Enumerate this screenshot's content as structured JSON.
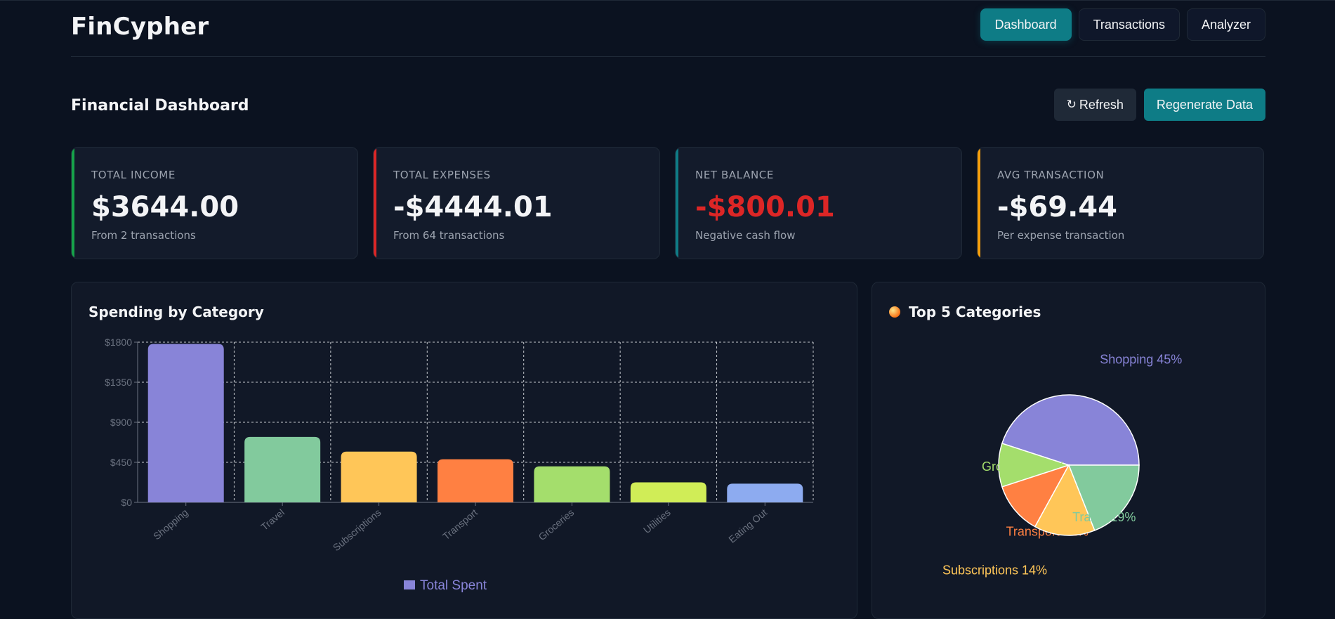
{
  "app": {
    "name": "FinCypher"
  },
  "nav": [
    {
      "label": "Dashboard",
      "active": true
    },
    {
      "label": "Transactions",
      "active": false
    },
    {
      "label": "Analyzer",
      "active": false
    }
  ],
  "toolbar": {
    "title": "Financial Dashboard",
    "refresh_icon": "↻",
    "refresh_label": "Refresh",
    "regenerate_label": "Regenerate Data"
  },
  "stats": [
    {
      "label": "TOTAL INCOME",
      "value": "$3644.00",
      "sub": "From 2 transactions",
      "accent": "#16a34a",
      "value_color": "#f3f4f6"
    },
    {
      "label": "TOTAL EXPENSES",
      "value": "-$4444.01",
      "sub": "From 64 transactions",
      "accent": "#dc2626",
      "value_color": "#f3f4f6"
    },
    {
      "label": "NET BALANCE",
      "value": "-$800.01",
      "sub": "Negative cash flow",
      "accent": "#0e7c86",
      "value_color": "#dc2626"
    },
    {
      "label": "AVG TRANSACTION",
      "value": "-$69.44",
      "sub": "Per expense transaction",
      "accent": "#f59e0b",
      "value_color": "#f3f4f6"
    }
  ],
  "spending_panel": {
    "title": "Spending by Category"
  },
  "top5_panel": {
    "title": "Top 5 Categories",
    "icon": "orange-dot-icon"
  },
  "chart_data": [
    {
      "type": "bar",
      "title": "Spending by Category",
      "categories": [
        "Shopping",
        "Travel",
        "Subscriptions",
        "Transport",
        "Groceries",
        "Utilities",
        "Eating Out"
      ],
      "series": [
        {
          "name": "Total Spent",
          "values": [
            1780,
            735,
            570,
            485,
            405,
            225,
            210
          ]
        }
      ],
      "colors": [
        "#8884d8",
        "#82ca9d",
        "#ffc658",
        "#ff8042",
        "#a4de6c",
        "#d0ed57",
        "#8dabf0"
      ],
      "ylim": [
        0,
        1800
      ],
      "yticks": [
        "$0",
        "$450",
        "$900",
        "$1350",
        "$1800"
      ],
      "grid": true,
      "legend": "bottom"
    },
    {
      "type": "pie",
      "title": "Top 5 Categories",
      "labels": [
        "Shopping",
        "Groceries",
        "Transport",
        "Subscriptions",
        "Travel"
      ],
      "values": [
        45,
        10,
        12,
        14,
        19
      ],
      "slice_labels": [
        "Shopping 45%",
        "Groceries 10%",
        "Transport 12%",
        "Subscriptions 14%",
        "Travel 19%"
      ],
      "colors": [
        "#8884d8",
        "#a4de6c",
        "#ff8042",
        "#ffc658",
        "#82ca9d"
      ]
    }
  ]
}
